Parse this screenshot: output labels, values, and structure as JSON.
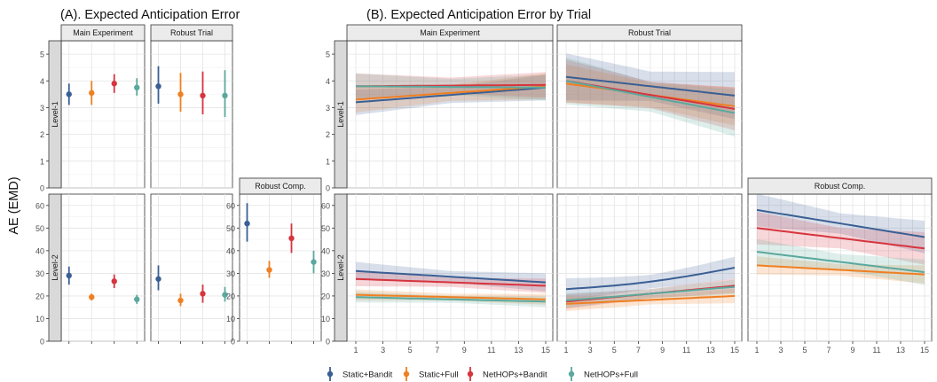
{
  "titles": {
    "a": "(A). Expected Anticipation Error",
    "b": "(B). Expected Anticipation Error by Trial"
  },
  "ylabel": "AE (EMD)",
  "strips": {
    "main": "Main Experiment",
    "robust_trial": "Robust Trial",
    "robust_comp": "Robust Comp.",
    "level1": "Level-1",
    "level2": "Level-2"
  },
  "legend": [
    {
      "label": "Static+Bandit",
      "color": "#3a5f94"
    },
    {
      "label": "Static+Full",
      "color": "#ef7f22"
    },
    {
      "label": "NetHOPs+Bandit",
      "color": "#d6353f"
    },
    {
      "label": "NetHOPs+Full",
      "color": "#5ba89d"
    }
  ],
  "chart_data": [
    {
      "id": "A",
      "type": "scatter",
      "title": "(A). Expected Anticipation Error",
      "ylabel": "AE (EMD)",
      "groups": [
        "Static+Bandit",
        "Static+Full",
        "NetHOPs+Bandit",
        "NetHOPs+Full"
      ],
      "y_ticks": {
        "Level-1": [
          0,
          1,
          2,
          3,
          4,
          5
        ],
        "Level-2": [
          0,
          10,
          20,
          30,
          40,
          50,
          60
        ]
      },
      "ylim": {
        "Level-1": [
          0,
          5.5
        ],
        "Level-2": [
          0,
          65
        ]
      },
      "panels": [
        {
          "row": "Level-1",
          "col": "Main Experiment",
          "points": [
            {
              "group": "Static+Bandit",
              "mean": 3.5,
              "lo": 3.1,
              "hi": 3.9
            },
            {
              "group": "Static+Full",
              "mean": 3.55,
              "lo": 3.1,
              "hi": 4.0
            },
            {
              "group": "NetHOPs+Bandit",
              "mean": 3.9,
              "lo": 3.55,
              "hi": 4.25
            },
            {
              "group": "NetHOPs+Full",
              "mean": 3.75,
              "lo": 3.45,
              "hi": 4.1
            }
          ]
        },
        {
          "row": "Level-1",
          "col": "Robust Trial",
          "points": [
            {
              "group": "Static+Bandit",
              "mean": 3.8,
              "lo": 3.15,
              "hi": 4.55
            },
            {
              "group": "Static+Full",
              "mean": 3.5,
              "lo": 2.85,
              "hi": 4.3
            },
            {
              "group": "NetHOPs+Bandit",
              "mean": 3.45,
              "lo": 2.75,
              "hi": 4.35
            },
            {
              "group": "NetHOPs+Full",
              "mean": 3.45,
              "lo": 2.65,
              "hi": 4.4
            }
          ]
        },
        {
          "row": "Level-2",
          "col": "Main Experiment",
          "points": [
            {
              "group": "Static+Bandit",
              "mean": 29,
              "lo": 25,
              "hi": 33
            },
            {
              "group": "Static+Full",
              "mean": 19.5,
              "lo": 18,
              "hi": 21
            },
            {
              "group": "NetHOPs+Bandit",
              "mean": 26.5,
              "lo": 23.5,
              "hi": 29.5
            },
            {
              "group": "NetHOPs+Full",
              "mean": 18.5,
              "lo": 16.5,
              "hi": 20.5
            }
          ]
        },
        {
          "row": "Level-2",
          "col": "Robust Trial",
          "points": [
            {
              "group": "Static+Bandit",
              "mean": 27.5,
              "lo": 22.5,
              "hi": 33.5
            },
            {
              "group": "Static+Full",
              "mean": 18,
              "lo": 15.5,
              "hi": 21
            },
            {
              "group": "NetHOPs+Bandit",
              "mean": 21,
              "lo": 17,
              "hi": 25
            },
            {
              "group": "NetHOPs+Full",
              "mean": 20.5,
              "lo": 17.5,
              "hi": 24
            }
          ]
        },
        {
          "row": "Level-2",
          "col": "Robust Comp.",
          "points": [
            {
              "group": "Static+Bandit",
              "mean": 52,
              "lo": 44,
              "hi": 61
            },
            {
              "group": "Static+Full",
              "mean": 31.5,
              "lo": 28,
              "hi": 35.5
            },
            {
              "group": "NetHOPs+Bandit",
              "mean": 45.5,
              "lo": 39,
              "hi": 52
            },
            {
              "group": "NetHOPs+Full",
              "mean": 35,
              "lo": 30,
              "hi": 40
            }
          ]
        }
      ]
    },
    {
      "id": "B",
      "type": "line",
      "title": "(B). Expected Anticipation Error by Trial",
      "x_ticks": [
        1,
        3,
        5,
        7,
        9,
        11,
        13,
        15
      ],
      "xlim": [
        1,
        15
      ],
      "y_ticks": {
        "Level-1": [
          0,
          1,
          2,
          3,
          4,
          5
        ],
        "Level-2": [
          0,
          10,
          20,
          30,
          40,
          50,
          60
        ]
      },
      "ylim": {
        "Level-1": [
          0,
          5.5
        ],
        "Level-2": [
          0,
          65
        ]
      },
      "grid": true,
      "panels": [
        {
          "row": "Level-1",
          "col": "Main Experiment",
          "series": [
            {
              "group": "Static+Bandit",
              "start": 3.2,
              "end": 3.75,
              "band": 0.3
            },
            {
              "group": "Static+Full",
              "start": 3.3,
              "end": 3.8,
              "band": 0.3
            },
            {
              "group": "NetHOPs+Bandit",
              "start": 3.8,
              "end": 3.85,
              "band": 0.3
            },
            {
              "group": "NetHOPs+Full",
              "start": 3.8,
              "end": 3.75,
              "band": 0.3
            }
          ]
        },
        {
          "row": "Level-1",
          "col": "Robust Trial",
          "series": [
            {
              "group": "Static+Bandit",
              "start": 4.15,
              "end": 3.45,
              "band": 0.55
            },
            {
              "group": "Static+Full",
              "start": 3.9,
              "end": 3.05,
              "band": 0.45
            },
            {
              "group": "NetHOPs+Bandit",
              "start": 4.0,
              "end": 2.95,
              "band": 0.5
            },
            {
              "group": "NetHOPs+Full",
              "start": 4.0,
              "end": 2.8,
              "band": 0.55
            }
          ]
        },
        {
          "row": "Level-2",
          "col": "Main Experiment",
          "series": [
            {
              "group": "Static+Bandit",
              "start": 31,
              "end": 26,
              "band": 2.5
            },
            {
              "group": "Static+Full",
              "start": 20.5,
              "end": 18.5,
              "band": 1.5
            },
            {
              "group": "NetHOPs+Bandit",
              "start": 27.5,
              "end": 24.5,
              "band": 2.0
            },
            {
              "group": "NetHOPs+Full",
              "start": 19.5,
              "end": 17.5,
              "band": 1.5
            }
          ]
        },
        {
          "row": "Level-2",
          "col": "Robust Trial",
          "series": [
            {
              "group": "Static+Bandit",
              "start": 23,
              "end": 32.5,
              "curve": 0.15,
              "band": 3.0
            },
            {
              "group": "Static+Full",
              "start": 16.5,
              "end": 20,
              "band": 2.0
            },
            {
              "group": "NetHOPs+Bandit",
              "start": 17.5,
              "end": 24.5,
              "band": 2.0
            },
            {
              "group": "NetHOPs+Full",
              "start": 18,
              "end": 24,
              "band": 2.0
            }
          ]
        },
        {
          "row": "Level-2",
          "col": "Robust Comp.",
          "series": [
            {
              "group": "Static+Bandit",
              "start": 58,
              "end": 46,
              "band": 4.5
            },
            {
              "group": "Static+Full",
              "start": 33.5,
              "end": 29.5,
              "band": 2.5
            },
            {
              "group": "NetHOPs+Bandit",
              "start": 50,
              "end": 41,
              "band": 4.5
            },
            {
              "group": "NetHOPs+Full",
              "start": 39.5,
              "end": 30.5,
              "band": 3.5
            }
          ]
        }
      ]
    }
  ]
}
